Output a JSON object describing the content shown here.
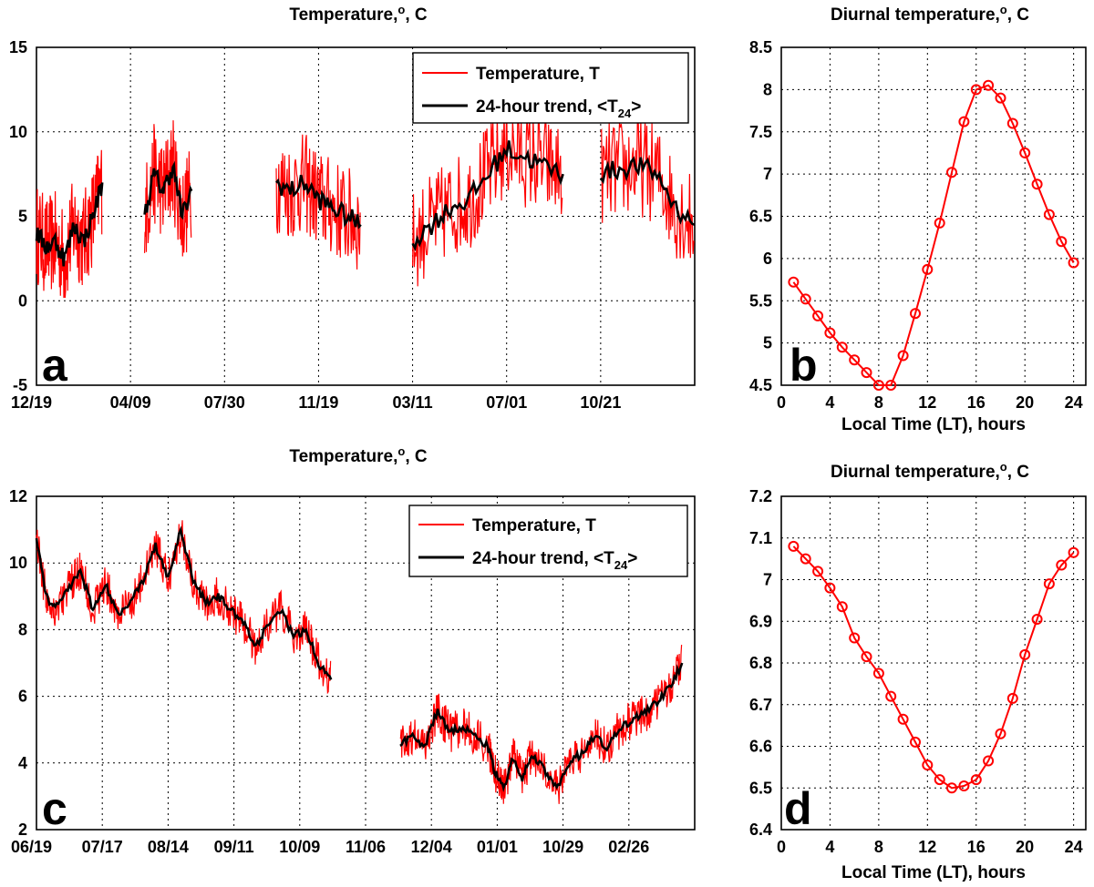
{
  "colors": {
    "temperature": "#ff0000",
    "trend": "#000000",
    "diurnal": "#ff0000"
  },
  "panels": [
    {
      "id": "a",
      "label": "a",
      "title_text": "Temperature,",
      "title_sup": "o",
      "title_unit": ", C",
      "legend": {
        "entries": [
          "Temperature, T",
          "24-hour trend, <T",
          "24",
          ">"
        ]
      }
    },
    {
      "id": "b",
      "label": "b",
      "title_text": "Diurnal temperature,",
      "title_sup": "o",
      "title_unit": ", C",
      "xlabel": "Local Time (LT), hours"
    },
    {
      "id": "c",
      "label": "c",
      "title_text": "Temperature,",
      "title_sup": "o",
      "title_unit": ", C",
      "legend": {
        "entries": [
          "Temperature, T",
          "24-hour trend, <T",
          "24",
          ">"
        ]
      }
    },
    {
      "id": "d",
      "label": "d",
      "title_text": "Diurnal temperature,",
      "title_sup": "o",
      "title_unit": ", C",
      "xlabel": "Local Time (LT), hours"
    }
  ],
  "chart_data": [
    {
      "panel": "a",
      "type": "line",
      "xlabel": "",
      "ylabel": "",
      "ylim": [
        -5,
        15
      ],
      "yticks": [
        -5,
        0,
        5,
        10,
        15
      ],
      "xlim": [
        0,
        7
      ],
      "xtick_labels": [
        "12/19",
        "04/09",
        "07/30",
        "11/19",
        "03/11",
        "07/01",
        "10/21"
      ],
      "grid": true,
      "legend_position": "top-right",
      "series": [
        {
          "name": "24-hour trend, <T24>",
          "segments": [
            {
              "x": [
                0.0,
                0.1,
                0.2,
                0.3,
                0.4,
                0.5,
                0.6,
                0.7
              ],
              "y": [
                4,
                3.2,
                3.5,
                2.5,
                4.5,
                3.5,
                5,
                7
              ]
            },
            {
              "x": [
                1.15,
                1.25,
                1.35,
                1.45,
                1.55,
                1.65
              ],
              "y": [
                5,
                7.5,
                6.5,
                8,
                5,
                6.5
              ]
            },
            {
              "x": [
                2.55,
                2.7,
                2.85,
                3.0,
                3.15,
                3.3,
                3.45
              ],
              "y": [
                7,
                6.5,
                7,
                6,
                5.5,
                5,
                4.5
              ]
            },
            {
              "x": [
                4.0,
                4.2,
                4.4,
                4.6,
                4.8,
                5.0,
                5.2,
                5.4,
                5.6
              ],
              "y": [
                3.5,
                4.5,
                5.5,
                6,
                7.5,
                9,
                8.5,
                8,
                7.5
              ]
            },
            {
              "x": [
                6.0,
                6.2,
                6.4,
                6.6,
                6.8,
                7.0
              ],
              "y": [
                7.5,
                7.8,
                8,
                7.5,
                5.5,
                4.5
              ]
            }
          ]
        },
        {
          "name": "Temperature, T",
          "segments": [
            {
              "x": [
                0.0,
                0.1,
                0.2,
                0.3,
                0.4,
                0.5,
                0.6,
                0.7
              ],
              "y": [
                4,
                3.2,
                3.5,
                2.5,
                4.5,
                3.5,
                5,
                7
              ]
            },
            {
              "x": [
                1.15,
                1.25,
                1.35,
                1.45,
                1.55,
                1.65
              ],
              "y": [
                5,
                7.5,
                6.5,
                8,
                5,
                6.5
              ]
            },
            {
              "x": [
                2.55,
                2.7,
                2.85,
                3.0,
                3.15,
                3.3,
                3.45
              ],
              "y": [
                7,
                6.5,
                7,
                6,
                5.5,
                5,
                4.5
              ]
            },
            {
              "x": [
                4.0,
                4.2,
                4.4,
                4.6,
                4.8,
                5.0,
                5.2,
                5.4,
                5.6
              ],
              "y": [
                3.5,
                4.5,
                5.5,
                6,
                7.5,
                9,
                8.5,
                8,
                7.5
              ]
            },
            {
              "x": [
                6.0,
                6.2,
                6.4,
                6.6,
                6.8,
                7.0
              ],
              "y": [
                7.5,
                7.8,
                8,
                7.5,
                5.5,
                4.5
              ]
            }
          ],
          "fluctuation_amplitude": 3
        }
      ]
    },
    {
      "panel": "b",
      "type": "line",
      "xlabel": "Local Time (LT), hours",
      "ylabel": "",
      "xlim": [
        0,
        25
      ],
      "xticks": [
        0,
        4,
        8,
        12,
        16,
        20,
        24
      ],
      "ylim": [
        4.5,
        8.5
      ],
      "yticks": [
        4.5,
        5,
        5.5,
        6,
        6.5,
        7,
        7.5,
        8,
        8.5
      ],
      "grid": true,
      "markers": "circle",
      "x": [
        1,
        2,
        3,
        4,
        5,
        6,
        7,
        8,
        9,
        10,
        11,
        12,
        13,
        14,
        15,
        16,
        17,
        18,
        19,
        20,
        21,
        22,
        23,
        24
      ],
      "values": [
        5.72,
        5.52,
        5.32,
        5.12,
        4.95,
        4.8,
        4.65,
        4.5,
        4.5,
        4.85,
        5.35,
        5.87,
        6.42,
        7.02,
        7.62,
        8.0,
        8.05,
        7.9,
        7.6,
        7.25,
        6.88,
        6.52,
        6.2,
        5.95
      ]
    },
    {
      "panel": "c",
      "type": "line",
      "xlabel": "",
      "ylabel": "",
      "ylim": [
        2,
        12
      ],
      "yticks": [
        2,
        4,
        6,
        8,
        10,
        12
      ],
      "xlim": [
        0,
        10.5
      ],
      "xtick_labels": [
        "06/19",
        "07/17",
        "08/14",
        "09/11",
        "10/09",
        "11/06",
        "12/04",
        "01/01",
        "10/29",
        "02/26"
      ],
      "grid": true,
      "legend_position": "top-right",
      "series": [
        {
          "name": "24-hour trend, <T24>",
          "segments": [
            {
              "x": [
                0.0,
                0.15,
                0.3,
                0.5,
                0.7,
                0.9,
                1.1,
                1.3,
                1.5,
                1.7,
                1.9,
                2.1,
                2.3,
                2.5,
                2.7,
                2.9,
                3.1,
                3.3,
                3.5,
                3.7,
                3.9,
                4.1,
                4.3,
                4.5,
                4.7
              ],
              "y": [
                10.8,
                9,
                8.6,
                9.2,
                9.8,
                8.6,
                9.4,
                8.4,
                8.8,
                9.5,
                10.5,
                9.5,
                11,
                9.5,
                8.8,
                9,
                8.6,
                8.2,
                7.5,
                8.2,
                8.6,
                7.8,
                8,
                7,
                6.5
              ]
            },
            {
              "x": [
                5.8,
                6.0,
                6.2,
                6.4,
                6.6,
                6.8,
                7.0,
                7.2,
                7.3,
                7.45,
                7.6,
                7.75,
                7.9,
                8.1,
                8.3,
                8.5,
                8.7,
                8.9,
                9.1,
                9.3,
                9.5,
                9.7,
                9.9,
                10.1,
                10.3
              ],
              "y": [
                4.6,
                4.8,
                4.5,
                5.6,
                4.9,
                5.1,
                4.8,
                4.5,
                3.8,
                3.2,
                4.2,
                3.5,
                4.3,
                3.8,
                3.2,
                4.0,
                4.3,
                4.8,
                4.5,
                5.0,
                5.3,
                5.5,
                5.8,
                6.3,
                7.0
              ]
            }
          ]
        },
        {
          "name": "Temperature, T",
          "segments": [
            {
              "x": [
                0.0,
                0.15,
                0.3,
                0.5,
                0.7,
                0.9,
                1.1,
                1.3,
                1.5,
                1.7,
                1.9,
                2.1,
                2.3,
                2.5,
                2.7,
                2.9,
                3.1,
                3.3,
                3.5,
                3.7,
                3.9,
                4.1,
                4.3,
                4.5,
                4.7
              ],
              "y": [
                10.8,
                9,
                8.6,
                9.2,
                9.8,
                8.6,
                9.4,
                8.4,
                8.8,
                9.5,
                10.5,
                9.5,
                11,
                9.5,
                8.8,
                9,
                8.6,
                8.2,
                7.5,
                8.2,
                8.6,
                7.8,
                8,
                7,
                6.5
              ]
            },
            {
              "x": [
                5.8,
                6.0,
                6.2,
                6.4,
                6.6,
                6.8,
                7.0,
                7.2,
                7.3,
                7.45,
                7.6,
                7.75,
                7.9,
                8.1,
                8.3,
                8.5,
                8.7,
                8.9,
                9.1,
                9.3,
                9.5,
                9.7,
                9.9,
                10.1,
                10.3
              ],
              "y": [
                4.6,
                4.8,
                4.5,
                5.6,
                4.9,
                5.1,
                4.8,
                4.5,
                3.8,
                3.2,
                4.2,
                3.5,
                4.3,
                3.8,
                3.2,
                4.0,
                4.3,
                4.8,
                4.5,
                5.0,
                5.3,
                5.5,
                5.8,
                6.3,
                7.0
              ]
            }
          ],
          "fluctuation_amplitude": 0.6
        }
      ]
    },
    {
      "panel": "d",
      "type": "line",
      "xlabel": "Local Time (LT), hours",
      "ylabel": "",
      "xlim": [
        0,
        25
      ],
      "xticks": [
        0,
        4,
        8,
        12,
        16,
        20,
        24
      ],
      "ylim": [
        6.4,
        7.2
      ],
      "yticks": [
        6.4,
        6.5,
        6.6,
        6.7,
        6.8,
        6.9,
        7,
        7.1,
        7.2
      ],
      "grid": true,
      "markers": "circle",
      "x": [
        1,
        2,
        3,
        4,
        5,
        6,
        7,
        8,
        9,
        10,
        11,
        12,
        13,
        14,
        15,
        16,
        17,
        18,
        19,
        20,
        21,
        22,
        23,
        24
      ],
      "values": [
        7.08,
        7.05,
        7.02,
        6.98,
        6.935,
        6.86,
        6.815,
        6.775,
        6.72,
        6.665,
        6.61,
        6.555,
        6.52,
        6.5,
        6.505,
        6.52,
        6.565,
        6.63,
        6.715,
        6.82,
        6.905,
        6.99,
        7.035,
        7.065
      ]
    }
  ]
}
